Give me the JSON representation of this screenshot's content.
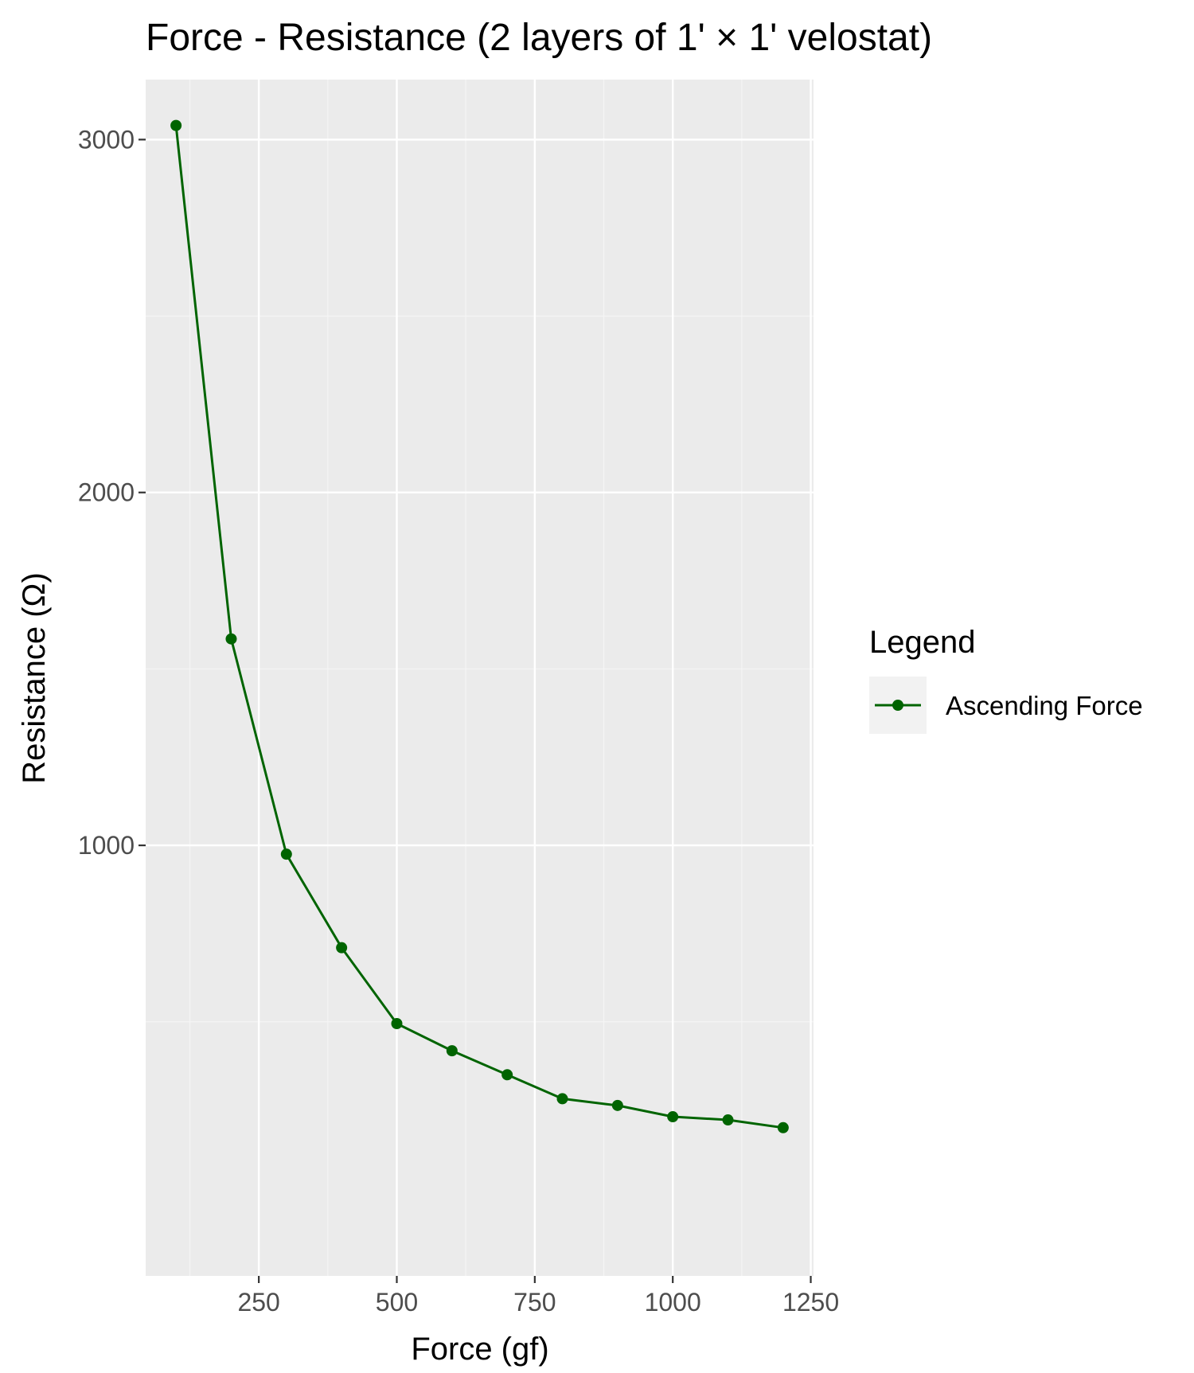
{
  "chart_data": {
    "type": "line",
    "title": "Force - Resistance  (2 layers of 1' × 1' velostat)",
    "xlabel": "Force (gf)",
    "ylabel": "Resistance (Ω)",
    "xlim": [
      45,
      1255
    ],
    "ylim": [
      -220,
      3170
    ],
    "x_ticks": [
      250,
      500,
      750,
      1000,
      1250
    ],
    "x_minor_ticks": [
      125,
      375,
      625,
      875,
      1125
    ],
    "y_ticks": [
      1000,
      2000,
      3000
    ],
    "y_minor_ticks": [
      500,
      1500,
      2500
    ],
    "grid": true,
    "legend": {
      "title": "Legend",
      "position": "right"
    },
    "series": [
      {
        "name": "Ascending Force",
        "color": "#006400",
        "x": [
          100,
          200,
          300,
          400,
          500,
          600,
          700,
          800,
          900,
          1000,
          1100,
          1200
        ],
        "y": [
          3040,
          1585,
          975,
          710,
          495,
          418,
          350,
          282,
          263,
          231,
          222,
          200
        ]
      }
    ]
  },
  "colors": {
    "panel_background": "#ebebeb",
    "grid_major": "#ffffff",
    "grid_minor": "#f5f5f5",
    "tick_text": "#4d4d4d",
    "legend_key_background": "#f2f2f2"
  }
}
